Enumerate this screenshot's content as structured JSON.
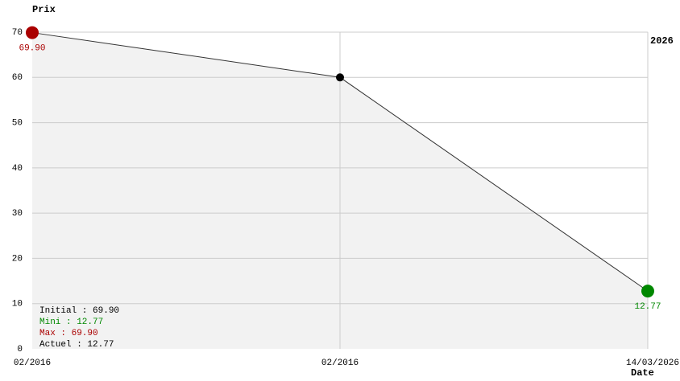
{
  "chart_data": {
    "type": "line",
    "y_label": "Prix",
    "x_label": "Date",
    "annotation": "2026",
    "categories": [
      "02/2016",
      "02/2016",
      "14/03/2026"
    ],
    "values": [
      69.9,
      60,
      12.77
    ],
    "value_labels": [
      "69.90",
      null,
      "12.77"
    ],
    "color": "#333333",
    "area_color": "#f2f2f2",
    "point_colors": [
      "#aa0000",
      "#000000",
      "#008800"
    ],
    "ylim": [
      0,
      70
    ],
    "yticks": [
      0,
      10,
      20,
      30,
      40,
      50,
      60,
      70
    ],
    "grid": true,
    "stats": [
      {
        "text": "Initial : 69.90",
        "color": "#000000"
      },
      {
        "text": "Mini : 12.77",
        "color": "#008800"
      },
      {
        "text": "Max : 69.90",
        "color": "#aa0000"
      },
      {
        "text": "Actuel : 12.77",
        "color": "#000000"
      }
    ]
  }
}
